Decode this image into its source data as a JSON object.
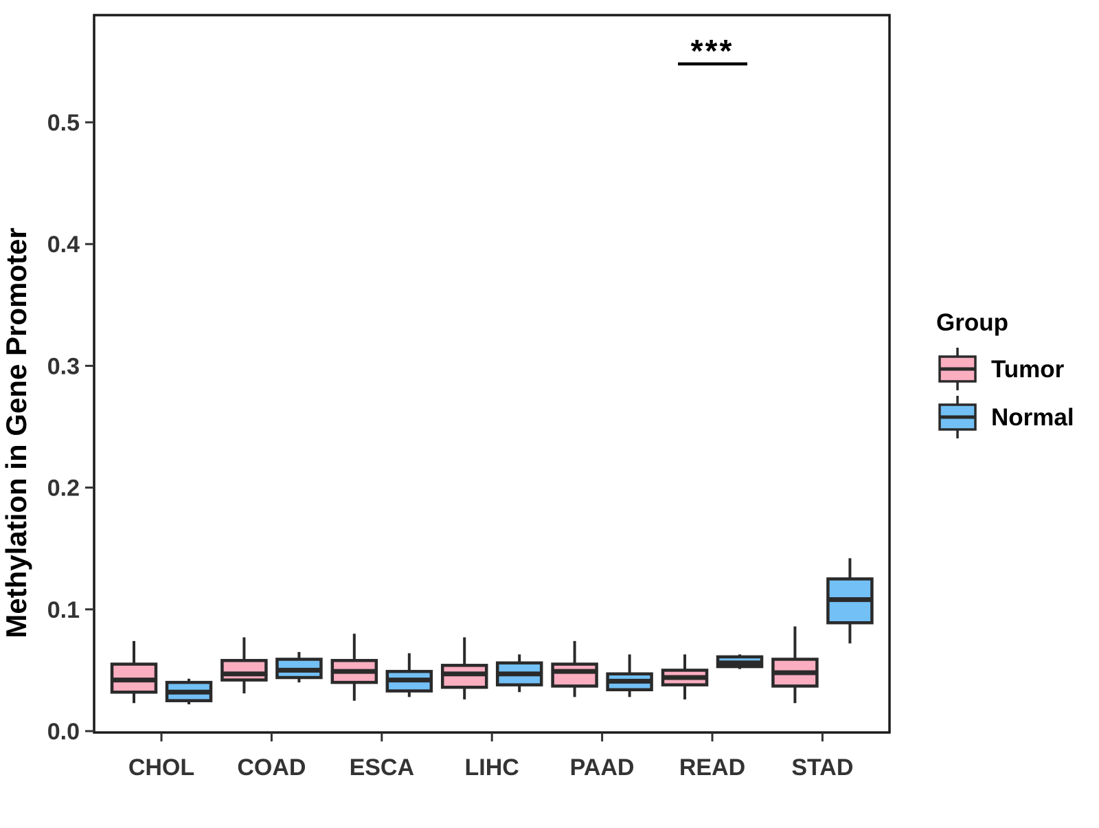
{
  "figure": {
    "background": "#ffffff",
    "y_axis": {
      "title": "Methylation in Gene Promoter",
      "tick_labels": [
        "0.0",
        "0.1",
        "0.2",
        "0.3",
        "0.4",
        "0.5"
      ],
      "tick_values": [
        0.0,
        0.1,
        0.2,
        0.3,
        0.4,
        0.5
      ]
    },
    "x_axis": {
      "categories": [
        "CHOL",
        "COAD",
        "ESCA",
        "LIHC",
        "PAAD",
        "READ",
        "STAD"
      ]
    },
    "colors": {
      "panel_border": "#1a1a1a",
      "box_stroke": "#2a2a2a",
      "axis_text": "#333333",
      "title_text": "#000000",
      "tumor_fill": "#FCAEC1",
      "normal_fill": "#72C0F5"
    },
    "legend": {
      "title": "Group",
      "items": [
        {
          "label": "Tumor",
          "color": "#FCAEC1"
        },
        {
          "label": "Normal",
          "color": "#72C0F5"
        }
      ]
    }
  },
  "chart_data": {
    "type": "boxplot",
    "title": "",
    "xlabel": "",
    "ylabel": "Methylation in Gene Promoter",
    "ylim": [
      0,
      0.59
    ],
    "yticks": [
      0.0,
      0.1,
      0.2,
      0.3,
      0.4,
      0.5
    ],
    "grid": false,
    "legend_position": "right",
    "categories": [
      "CHOL",
      "COAD",
      "ESCA",
      "LIHC",
      "PAAD",
      "READ",
      "STAD"
    ],
    "groups": [
      "Tumor",
      "Normal"
    ],
    "series": [
      {
        "name": "Tumor",
        "color": "#FCAEC1",
        "boxes": [
          {
            "category": "CHOL",
            "whisker_low": 0.023,
            "q1": 0.032,
            "median": 0.042,
            "q3": 0.055,
            "whisker_high": 0.074
          },
          {
            "category": "COAD",
            "whisker_low": 0.031,
            "q1": 0.042,
            "median": 0.047,
            "q3": 0.058,
            "whisker_high": 0.077
          },
          {
            "category": "ESCA",
            "whisker_low": 0.025,
            "q1": 0.04,
            "median": 0.049,
            "q3": 0.058,
            "whisker_high": 0.08
          },
          {
            "category": "LIHC",
            "whisker_low": 0.026,
            "q1": 0.036,
            "median": 0.047,
            "q3": 0.054,
            "whisker_high": 0.077
          },
          {
            "category": "PAAD",
            "whisker_low": 0.028,
            "q1": 0.037,
            "median": 0.049,
            "q3": 0.055,
            "whisker_high": 0.074
          },
          {
            "category": "READ",
            "whisker_low": 0.026,
            "q1": 0.038,
            "median": 0.044,
            "q3": 0.05,
            "whisker_high": 0.063
          },
          {
            "category": "STAD",
            "whisker_low": 0.023,
            "q1": 0.037,
            "median": 0.048,
            "q3": 0.059,
            "whisker_high": 0.086
          }
        ]
      },
      {
        "name": "Normal",
        "color": "#72C0F5",
        "boxes": [
          {
            "category": "CHOL",
            "whisker_low": 0.022,
            "q1": 0.025,
            "median": 0.032,
            "q3": 0.04,
            "whisker_high": 0.043
          },
          {
            "category": "COAD",
            "whisker_low": 0.04,
            "q1": 0.044,
            "median": 0.05,
            "q3": 0.059,
            "whisker_high": 0.065
          },
          {
            "category": "ESCA",
            "whisker_low": 0.028,
            "q1": 0.033,
            "median": 0.042,
            "q3": 0.049,
            "whisker_high": 0.064
          },
          {
            "category": "LIHC",
            "whisker_low": 0.032,
            "q1": 0.038,
            "median": 0.047,
            "q3": 0.056,
            "whisker_high": 0.063
          },
          {
            "category": "PAAD",
            "whisker_low": 0.028,
            "q1": 0.034,
            "median": 0.041,
            "q3": 0.047,
            "whisker_high": 0.063
          },
          {
            "category": "READ",
            "whisker_low": 0.051,
            "q1": 0.053,
            "median": 0.056,
            "q3": 0.061,
            "whisker_high": 0.063
          },
          {
            "category": "STAD",
            "whisker_low": 0.072,
            "q1": 0.089,
            "median": 0.108,
            "q3": 0.125,
            "whisker_high": 0.142
          }
        ]
      }
    ],
    "significance": [
      {
        "category": "READ",
        "label": "***",
        "line_y": 0.548
      }
    ]
  }
}
